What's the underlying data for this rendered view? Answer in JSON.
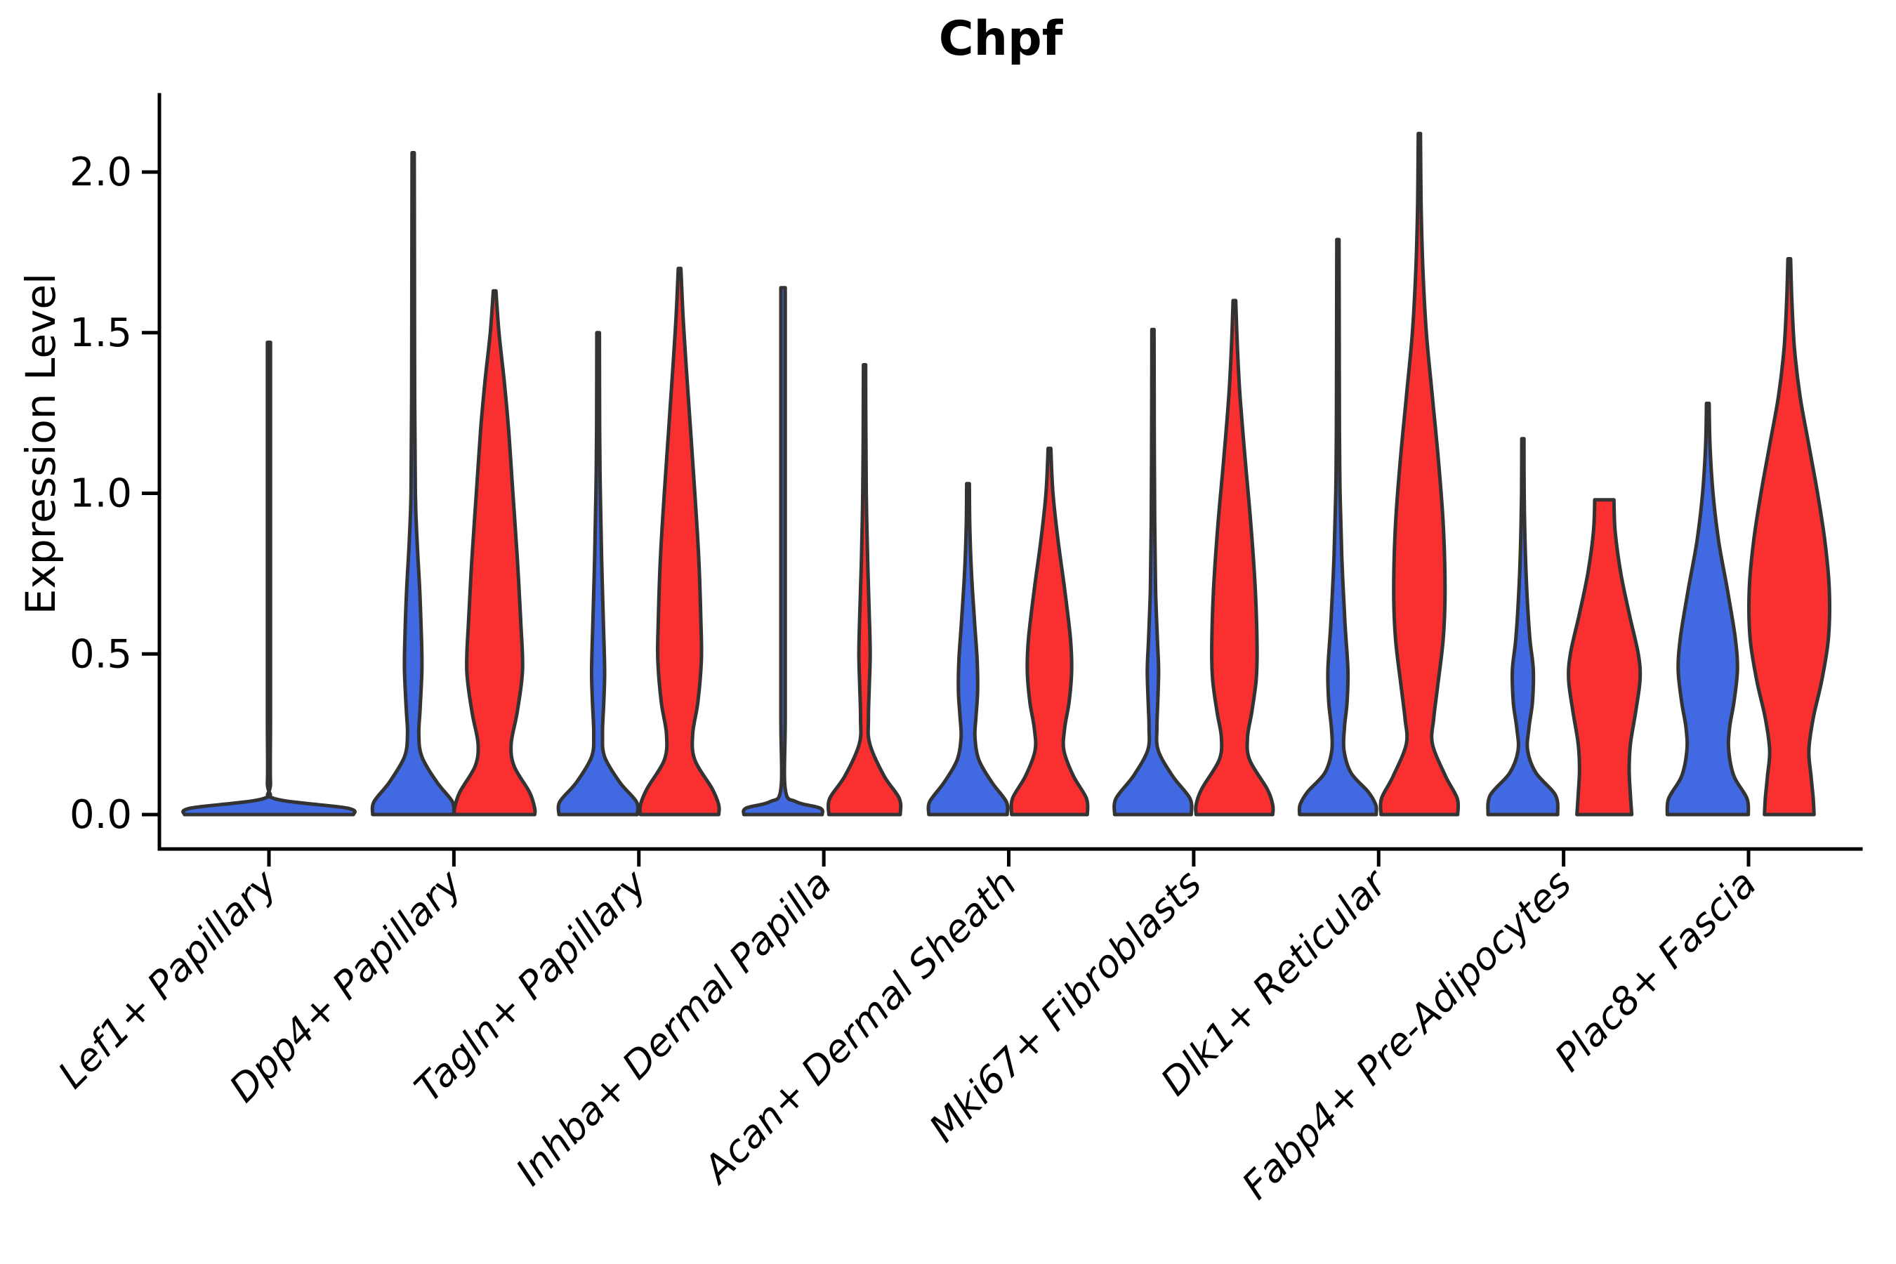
{
  "chart_data": {
    "type": "violin",
    "title": "Chpf",
    "ylabel": "Expression Level",
    "xlabel": "",
    "ylim": [
      -0.11,
      2.25
    ],
    "grid": false,
    "legend": "none",
    "yticks": [
      {
        "value": 0.0,
        "label": "0.0"
      },
      {
        "value": 0.5,
        "label": "0.5"
      },
      {
        "value": 1.0,
        "label": "1.0"
      },
      {
        "value": 1.5,
        "label": "1.5"
      },
      {
        "value": 2.0,
        "label": "2.0"
      }
    ],
    "categories": [
      "Lef1+ Papillary",
      "Dpp4+ Papillary",
      "Tagln+ Papillary",
      "Inhba+ Dermal Papilla",
      "Acan+ Dermal Sheath",
      "Mki67+ Fibroblasts",
      "Dlk1+ Reticular",
      "Fabp4+ Pre-Adipocytes",
      "Plac8+ Fascia"
    ],
    "series": [
      {
        "name": "group-blue",
        "color": "#4169E1"
      },
      {
        "name": "group-red",
        "color": "#FA2F2F"
      }
    ],
    "stroke_color": "#333333",
    "stroke_width": 5,
    "violins": [
      {
        "category": "Lef1+ Papillary",
        "blue": {
          "peak_expression": 1.47,
          "width_scale": 2.0,
          "offset": 0,
          "flat": true,
          "profile": [
            [
              1.47,
              0.018
            ],
            [
              1.1,
              0.018
            ],
            [
              0.7,
              0.018
            ],
            [
              0.3,
              0.018
            ],
            [
              0.1,
              0.018
            ],
            [
              0.05,
              0.06
            ],
            [
              0.02,
              0.9
            ],
            [
              0,
              0.97
            ]
          ]
        },
        "red": null
      },
      {
        "category": "Dpp4+ Papillary",
        "blue": {
          "peak_expression": 2.06,
          "width_scale": 1,
          "offset": -58,
          "flat": false,
          "profile": [
            [
              2.06,
              0.025
            ],
            [
              1.7,
              0.03
            ],
            [
              1.3,
              0.035
            ],
            [
              1.0,
              0.05
            ],
            [
              0.85,
              0.09
            ],
            [
              0.7,
              0.15
            ],
            [
              0.55,
              0.19
            ],
            [
              0.45,
              0.2
            ],
            [
              0.33,
              0.16
            ],
            [
              0.25,
              0.13
            ],
            [
              0.18,
              0.2
            ],
            [
              0.1,
              0.55
            ],
            [
              0.04,
              0.9
            ],
            [
              0,
              0.93
            ]
          ]
        },
        "red": {
          "peak_expression": 1.63,
          "width_scale": 1,
          "offset": 58,
          "flat": false,
          "profile": [
            [
              1.63,
              0.03
            ],
            [
              1.5,
              0.1
            ],
            [
              1.35,
              0.22
            ],
            [
              1.2,
              0.32
            ],
            [
              1.0,
              0.42
            ],
            [
              0.8,
              0.52
            ],
            [
              0.6,
              0.6
            ],
            [
              0.45,
              0.64
            ],
            [
              0.32,
              0.52
            ],
            [
              0.22,
              0.38
            ],
            [
              0.15,
              0.45
            ],
            [
              0.07,
              0.8
            ],
            [
              0.02,
              0.92
            ],
            [
              0,
              0.92
            ]
          ]
        }
      },
      {
        "category": "Tagln+ Papillary",
        "blue": {
          "peak_expression": 1.5,
          "width_scale": 1,
          "offset": -58,
          "flat": false,
          "profile": [
            [
              1.5,
              0.03
            ],
            [
              1.2,
              0.035
            ],
            [
              1.0,
              0.05
            ],
            [
              0.8,
              0.08
            ],
            [
              0.6,
              0.12
            ],
            [
              0.45,
              0.15
            ],
            [
              0.35,
              0.13
            ],
            [
              0.25,
              0.1
            ],
            [
              0.18,
              0.15
            ],
            [
              0.1,
              0.5
            ],
            [
              0.04,
              0.88
            ],
            [
              0,
              0.9
            ]
          ]
        },
        "red": {
          "peak_expression": 1.7,
          "width_scale": 1,
          "offset": 58,
          "flat": false,
          "profile": [
            [
              1.7,
              0.03
            ],
            [
              1.55,
              0.08
            ],
            [
              1.4,
              0.15
            ],
            [
              1.2,
              0.25
            ],
            [
              1.0,
              0.35
            ],
            [
              0.8,
              0.44
            ],
            [
              0.6,
              0.49
            ],
            [
              0.48,
              0.5
            ],
            [
              0.35,
              0.42
            ],
            [
              0.25,
              0.3
            ],
            [
              0.17,
              0.35
            ],
            [
              0.08,
              0.75
            ],
            [
              0.03,
              0.9
            ],
            [
              0,
              0.9
            ]
          ]
        }
      },
      {
        "category": "Inhba+ Dermal Papilla",
        "blue": {
          "peak_expression": 1.64,
          "width_scale": 1,
          "offset": -58,
          "flat": true,
          "profile": [
            [
              1.64,
              0.05
            ],
            [
              1.2,
              0.05
            ],
            [
              0.7,
              0.05
            ],
            [
              0.3,
              0.05
            ],
            [
              0.08,
              0.05
            ],
            [
              0.04,
              0.3
            ],
            [
              0.02,
              0.85
            ],
            [
              0,
              0.9
            ]
          ]
        },
        "red": {
          "peak_expression": 1.4,
          "width_scale": 1,
          "offset": 58,
          "flat": false,
          "profile": [
            [
              1.4,
              0.025
            ],
            [
              1.2,
              0.03
            ],
            [
              1.0,
              0.04
            ],
            [
              0.8,
              0.07
            ],
            [
              0.62,
              0.11
            ],
            [
              0.5,
              0.13
            ],
            [
              0.4,
              0.11
            ],
            [
              0.3,
              0.09
            ],
            [
              0.22,
              0.12
            ],
            [
              0.12,
              0.45
            ],
            [
              0.05,
              0.8
            ],
            [
              0,
              0.82
            ]
          ]
        }
      },
      {
        "category": "Acan+ Dermal Sheath",
        "blue": {
          "peak_expression": 1.03,
          "width_scale": 1,
          "offset": -58,
          "flat": false,
          "profile": [
            [
              1.03,
              0.03
            ],
            [
              0.9,
              0.04
            ],
            [
              0.75,
              0.08
            ],
            [
              0.6,
              0.15
            ],
            [
              0.48,
              0.21
            ],
            [
              0.38,
              0.22
            ],
            [
              0.3,
              0.18
            ],
            [
              0.24,
              0.16
            ],
            [
              0.17,
              0.25
            ],
            [
              0.1,
              0.55
            ],
            [
              0.04,
              0.88
            ],
            [
              0,
              0.9
            ]
          ]
        },
        "red": {
          "peak_expression": 1.14,
          "width_scale": 1,
          "offset": 58,
          "flat": false,
          "profile": [
            [
              1.14,
              0.03
            ],
            [
              1.0,
              0.08
            ],
            [
              0.85,
              0.2
            ],
            [
              0.7,
              0.35
            ],
            [
              0.55,
              0.48
            ],
            [
              0.45,
              0.51
            ],
            [
              0.35,
              0.45
            ],
            [
              0.27,
              0.35
            ],
            [
              0.2,
              0.33
            ],
            [
              0.12,
              0.55
            ],
            [
              0.05,
              0.85
            ],
            [
              0,
              0.87
            ]
          ]
        }
      },
      {
        "category": "Mki67+ Fibroblasts",
        "blue": {
          "peak_expression": 1.51,
          "width_scale": 1,
          "offset": -58,
          "flat": false,
          "profile": [
            [
              1.51,
              0.025
            ],
            [
              1.2,
              0.03
            ],
            [
              0.9,
              0.04
            ],
            [
              0.7,
              0.06
            ],
            [
              0.55,
              0.1
            ],
            [
              0.45,
              0.13
            ],
            [
              0.35,
              0.11
            ],
            [
              0.27,
              0.09
            ],
            [
              0.2,
              0.12
            ],
            [
              0.12,
              0.45
            ],
            [
              0.05,
              0.85
            ],
            [
              0,
              0.88
            ]
          ]
        },
        "red": {
          "peak_expression": 1.6,
          "width_scale": 1,
          "offset": 58,
          "flat": false,
          "profile": [
            [
              1.6,
              0.03
            ],
            [
              1.45,
              0.07
            ],
            [
              1.3,
              0.13
            ],
            [
              1.1,
              0.25
            ],
            [
              0.9,
              0.38
            ],
            [
              0.7,
              0.48
            ],
            [
              0.52,
              0.52
            ],
            [
              0.42,
              0.5
            ],
            [
              0.32,
              0.4
            ],
            [
              0.24,
              0.3
            ],
            [
              0.17,
              0.35
            ],
            [
              0.08,
              0.75
            ],
            [
              0.03,
              0.88
            ],
            [
              0,
              0.88
            ]
          ]
        }
      },
      {
        "category": "Dlk1+ Reticular",
        "blue": {
          "peak_expression": 1.79,
          "width_scale": 1,
          "offset": -58,
          "flat": false,
          "profile": [
            [
              1.79,
              0.025
            ],
            [
              1.5,
              0.03
            ],
            [
              1.2,
              0.035
            ],
            [
              1.0,
              0.05
            ],
            [
              0.8,
              0.09
            ],
            [
              0.6,
              0.16
            ],
            [
              0.45,
              0.23
            ],
            [
              0.35,
              0.21
            ],
            [
              0.27,
              0.15
            ],
            [
              0.2,
              0.14
            ],
            [
              0.13,
              0.3
            ],
            [
              0.07,
              0.7
            ],
            [
              0.03,
              0.87
            ],
            [
              0,
              0.88
            ]
          ]
        },
        "red": {
          "peak_expression": 2.12,
          "width_scale": 1,
          "offset": 58,
          "flat": false,
          "profile": [
            [
              2.12,
              0.025
            ],
            [
              1.9,
              0.04
            ],
            [
              1.7,
              0.08
            ],
            [
              1.5,
              0.16
            ],
            [
              1.3,
              0.3
            ],
            [
              1.1,
              0.44
            ],
            [
              0.9,
              0.55
            ],
            [
              0.7,
              0.59
            ],
            [
              0.55,
              0.55
            ],
            [
              0.4,
              0.42
            ],
            [
              0.3,
              0.33
            ],
            [
              0.22,
              0.3
            ],
            [
              0.12,
              0.6
            ],
            [
              0.05,
              0.87
            ],
            [
              0,
              0.88
            ]
          ]
        }
      },
      {
        "category": "Fabp4+ Pre-Adipocytes",
        "blue": {
          "peak_expression": 1.17,
          "width_scale": 1,
          "offset": -58,
          "flat": false,
          "profile": [
            [
              1.17,
              0.025
            ],
            [
              1.0,
              0.03
            ],
            [
              0.85,
              0.05
            ],
            [
              0.7,
              0.09
            ],
            [
              0.55,
              0.16
            ],
            [
              0.45,
              0.24
            ],
            [
              0.35,
              0.22
            ],
            [
              0.27,
              0.14
            ],
            [
              0.2,
              0.11
            ],
            [
              0.13,
              0.3
            ],
            [
              0.06,
              0.75
            ],
            [
              0,
              0.8
            ]
          ]
        },
        "red": {
          "peak_expression": 0.98,
          "width_scale": 1,
          "offset": 58,
          "flat": false,
          "profile": [
            [
              0.98,
              0.22
            ],
            [
              0.88,
              0.25
            ],
            [
              0.75,
              0.38
            ],
            [
              0.62,
              0.58
            ],
            [
              0.5,
              0.78
            ],
            [
              0.42,
              0.82
            ],
            [
              0.32,
              0.72
            ],
            [
              0.22,
              0.6
            ],
            [
              0.14,
              0.57
            ],
            [
              0.06,
              0.6
            ],
            [
              0,
              0.63
            ]
          ]
        }
      },
      {
        "category": "Plac8+ Fascia",
        "blue": {
          "peak_expression": 1.28,
          "width_scale": 1,
          "offset": -58,
          "flat": false,
          "profile": [
            [
              1.28,
              0.03
            ],
            [
              1.15,
              0.05
            ],
            [
              1.0,
              0.12
            ],
            [
              0.85,
              0.25
            ],
            [
              0.7,
              0.45
            ],
            [
              0.55,
              0.63
            ],
            [
              0.45,
              0.68
            ],
            [
              0.35,
              0.6
            ],
            [
              0.27,
              0.5
            ],
            [
              0.2,
              0.48
            ],
            [
              0.12,
              0.6
            ],
            [
              0.05,
              0.9
            ],
            [
              0,
              0.93
            ]
          ]
        },
        "red": {
          "peak_expression": 1.73,
          "width_scale": 1,
          "offset": 58,
          "flat": false,
          "profile": [
            [
              1.73,
              0.03
            ],
            [
              1.6,
              0.06
            ],
            [
              1.45,
              0.12
            ],
            [
              1.3,
              0.25
            ],
            [
              1.15,
              0.45
            ],
            [
              1.0,
              0.65
            ],
            [
              0.85,
              0.82
            ],
            [
              0.7,
              0.92
            ],
            [
              0.55,
              0.9
            ],
            [
              0.42,
              0.75
            ],
            [
              0.3,
              0.55
            ],
            [
              0.2,
              0.45
            ],
            [
              0.12,
              0.5
            ],
            [
              0.05,
              0.55
            ],
            [
              0,
              0.57
            ]
          ]
        }
      }
    ]
  }
}
